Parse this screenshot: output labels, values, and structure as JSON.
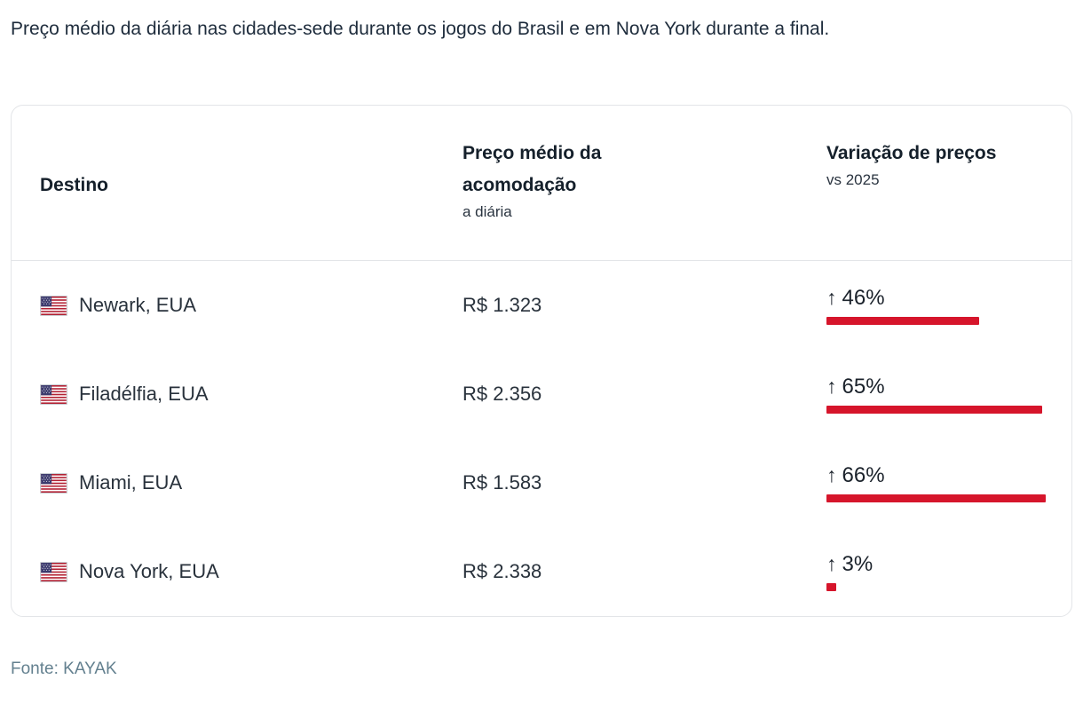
{
  "page": {
    "title": "Preço médio da diária nas cidades-sede durante os jogos do Brasil e em Nova York durante a final."
  },
  "table": {
    "headers": {
      "destination": "Destino",
      "price": "Preço médio da acomodação",
      "price_sub": "a diária",
      "variation": "Variação de preços",
      "variation_sub": "vs 2025"
    },
    "arrow": "↑",
    "rows": [
      {
        "city": "Newark, EUA",
        "flag": "us-flag-icon",
        "price": "R$ 1.323",
        "variation": "46%",
        "variation_pct": 46
      },
      {
        "city": "Filadélfia, EUA",
        "flag": "us-flag-icon",
        "price": "R$ 2.356",
        "variation": "65%",
        "variation_pct": 65
      },
      {
        "city": "Miami, EUA",
        "flag": "us-flag-icon",
        "price": "R$ 1.583",
        "variation": "66%",
        "variation_pct": 66
      },
      {
        "city": "Nova York, EUA",
        "flag": "us-flag-icon",
        "price": "R$ 2.338",
        "variation": "3%",
        "variation_pct": 3
      }
    ]
  },
  "chart_data": {
    "type": "bar",
    "title": "Preço médio da diária nas cidades-sede durante os jogos do Brasil e em Nova York durante a final.",
    "categories": [
      "Newark, EUA",
      "Filadélfia, EUA",
      "Miami, EUA",
      "Nova York, EUA"
    ],
    "series": [
      {
        "name": "Preço médio da acomodação (a diária)",
        "values": [
          "R$ 1.323",
          "R$ 2.356",
          "R$ 1.583",
          "R$ 2.338"
        ]
      },
      {
        "name": "Variação de preços vs 2025 (%)",
        "values": [
          46,
          65,
          66,
          3
        ]
      }
    ],
    "bar_color": "#d6152b",
    "xlabel": "",
    "ylabel": "Variação de preços vs 2025",
    "source": "Fonte: KAYAK"
  },
  "footer": {
    "label": "Fonte: ",
    "source": "KAYAK"
  }
}
